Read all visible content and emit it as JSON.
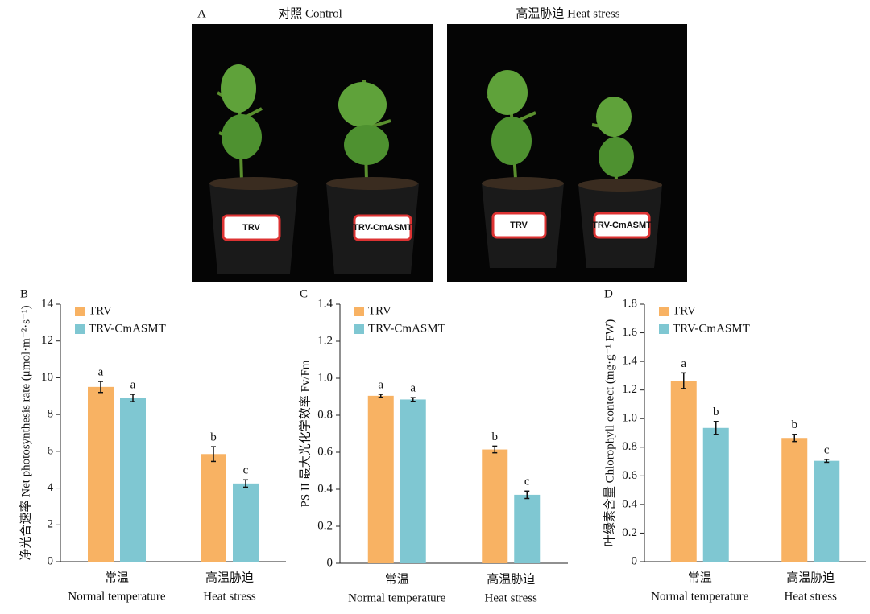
{
  "panel_a": {
    "label": "A",
    "photos": [
      {
        "title": "对照 Control",
        "pots": [
          "TRV",
          "TRV-CmASMT"
        ]
      },
      {
        "title": "高温胁迫 Heat stress",
        "pots": [
          "TRV",
          "TRV-CmASMT"
        ]
      }
    ]
  },
  "chart_data": [
    {
      "type": "bar",
      "panel": "B",
      "ylabel": "净光合速率 Net photosynthesis rate (μmol·m⁻²·s⁻¹)",
      "categories": [
        "常温",
        "高温胁迫"
      ],
      "category_subtitles": [
        "Normal temperature",
        "Heat stress"
      ],
      "series": [
        {
          "name": "TRV",
          "color": "#f8b263",
          "values": [
            9.5,
            5.85
          ],
          "errors": [
            0.3,
            0.4
          ],
          "letters": [
            "a",
            "b"
          ]
        },
        {
          "name": "TRV-CmASMT",
          "color": "#7fc7d2",
          "values": [
            8.9,
            4.25
          ],
          "errors": [
            0.2,
            0.2
          ],
          "letters": [
            "a",
            "c"
          ]
        }
      ],
      "ylim": [
        0,
        14
      ],
      "yticks": [
        0,
        2,
        4,
        6,
        8,
        10,
        12,
        14
      ]
    },
    {
      "type": "bar",
      "panel": "C",
      "ylabel": "PS II 最大光化学效率 Fv/Fm",
      "categories": [
        "常温",
        "高温胁迫"
      ],
      "category_subtitles": [
        "Normal temperature",
        "Heat stress"
      ],
      "series": [
        {
          "name": "TRV",
          "color": "#f8b263",
          "values": [
            0.905,
            0.615
          ],
          "errors": [
            0.008,
            0.018
          ],
          "letters": [
            "a",
            "b"
          ]
        },
        {
          "name": "TRV-CmASMT",
          "color": "#7fc7d2",
          "values": [
            0.885,
            0.37
          ],
          "errors": [
            0.01,
            0.02
          ],
          "letters": [
            "a",
            "c"
          ]
        }
      ],
      "ylim": [
        0,
        1.4
      ],
      "yticks": [
        0,
        0.2,
        0.4,
        0.6,
        0.8,
        {
          "value": 1,
          "label": "1.0"
        },
        1.2,
        1.4
      ]
    },
    {
      "type": "bar",
      "panel": "D",
      "ylabel": "叶绿素含量 Chlorophyll contect (mg·g⁻¹ FW)",
      "categories": [
        "常温",
        "高温胁迫"
      ],
      "category_subtitles": [
        "Normal temperature",
        "Heat stress"
      ],
      "series": [
        {
          "name": "TRV",
          "color": "#f8b263",
          "values": [
            1.265,
            0.865
          ],
          "errors": [
            0.055,
            0.025
          ],
          "letters": [
            "a",
            "b"
          ]
        },
        {
          "name": "TRV-CmASMT",
          "color": "#7fc7d2",
          "values": [
            0.935,
            0.705
          ],
          "errors": [
            0.045,
            0.01
          ],
          "letters": [
            "b",
            "c"
          ]
        }
      ],
      "ylim": [
        0,
        1.8
      ],
      "yticks": [
        0,
        0.2,
        0.4,
        0.6,
        0.8,
        {
          "value": 1,
          "label": "1.0"
        },
        1.2,
        1.4,
        1.6,
        1.8
      ]
    }
  ]
}
